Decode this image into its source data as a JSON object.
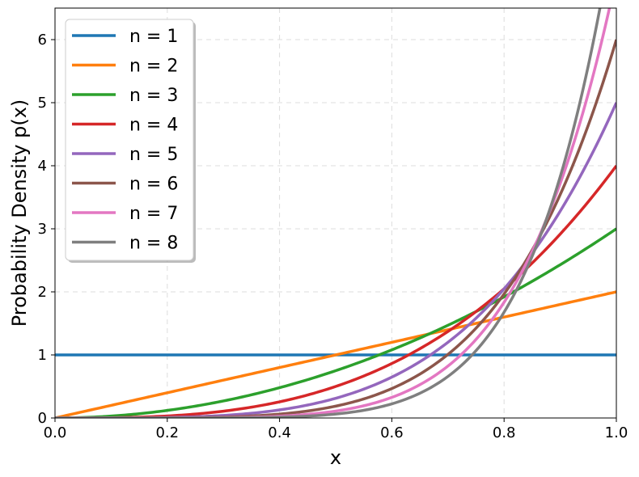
{
  "chart_data": {
    "type": "line",
    "title": "",
    "xlabel": "x",
    "ylabel": "Probability Density p(x)",
    "xlim": [
      0.0,
      1.0
    ],
    "ylim": [
      0,
      6.5
    ],
    "xticks": [
      "0.0",
      "0.2",
      "0.4",
      "0.6",
      "0.8",
      "1.0"
    ],
    "yticks": [
      "0",
      "1",
      "2",
      "3",
      "4",
      "5",
      "6"
    ],
    "grid": true,
    "legend_position": "top-left",
    "x": [
      0.0,
      0.1,
      0.2,
      0.3,
      0.4,
      0.5,
      0.6,
      0.7,
      0.8,
      0.9,
      1.0
    ],
    "series": [
      {
        "name": "n = 1",
        "color": "#1f77b4",
        "values": [
          1,
          1,
          1,
          1,
          1,
          1,
          1,
          1,
          1,
          1,
          1
        ]
      },
      {
        "name": "n = 2",
        "color": "#ff7f0e",
        "values": [
          0,
          0.2,
          0.4,
          0.6,
          0.8,
          1.0,
          1.2,
          1.4,
          1.6,
          1.8,
          2.0
        ]
      },
      {
        "name": "n = 3",
        "color": "#2ca02c",
        "values": [
          0,
          0.03,
          0.12,
          0.27,
          0.48,
          0.75,
          1.08,
          1.47,
          1.92,
          2.43,
          3.0
        ]
      },
      {
        "name": "n = 4",
        "color": "#d62728",
        "values": [
          0,
          0.004,
          0.032,
          0.108,
          0.256,
          0.5,
          0.864,
          1.372,
          2.048,
          2.916,
          4.0
        ]
      },
      {
        "name": "n = 5",
        "color": "#9467bd",
        "values": [
          0,
          0.0005,
          0.008,
          0.0405,
          0.128,
          0.3125,
          0.648,
          1.2005,
          2.048,
          3.2805,
          5.0
        ]
      },
      {
        "name": "n = 6",
        "color": "#8c564b",
        "values": [
          0,
          6e-05,
          0.00192,
          0.01458,
          0.06144,
          0.1875,
          0.46656,
          1.00842,
          1.96608,
          3.54294,
          6.0
        ]
      },
      {
        "name": "n = 7",
        "color": "#e377c2",
        "values": [
          0,
          7e-06,
          0.000448,
          0.005103,
          0.028672,
          0.109375,
          0.326592,
          0.823543,
          1.835008,
          3.720087,
          7.0
        ]
      },
      {
        "name": "n = 8",
        "color": "#7f7f7f",
        "values": [
          0,
          8e-07,
          0.000102,
          0.00175,
          0.01311,
          0.0625,
          0.2239,
          0.6588,
          1.6777,
          3.8264,
          8.0
        ]
      }
    ]
  }
}
